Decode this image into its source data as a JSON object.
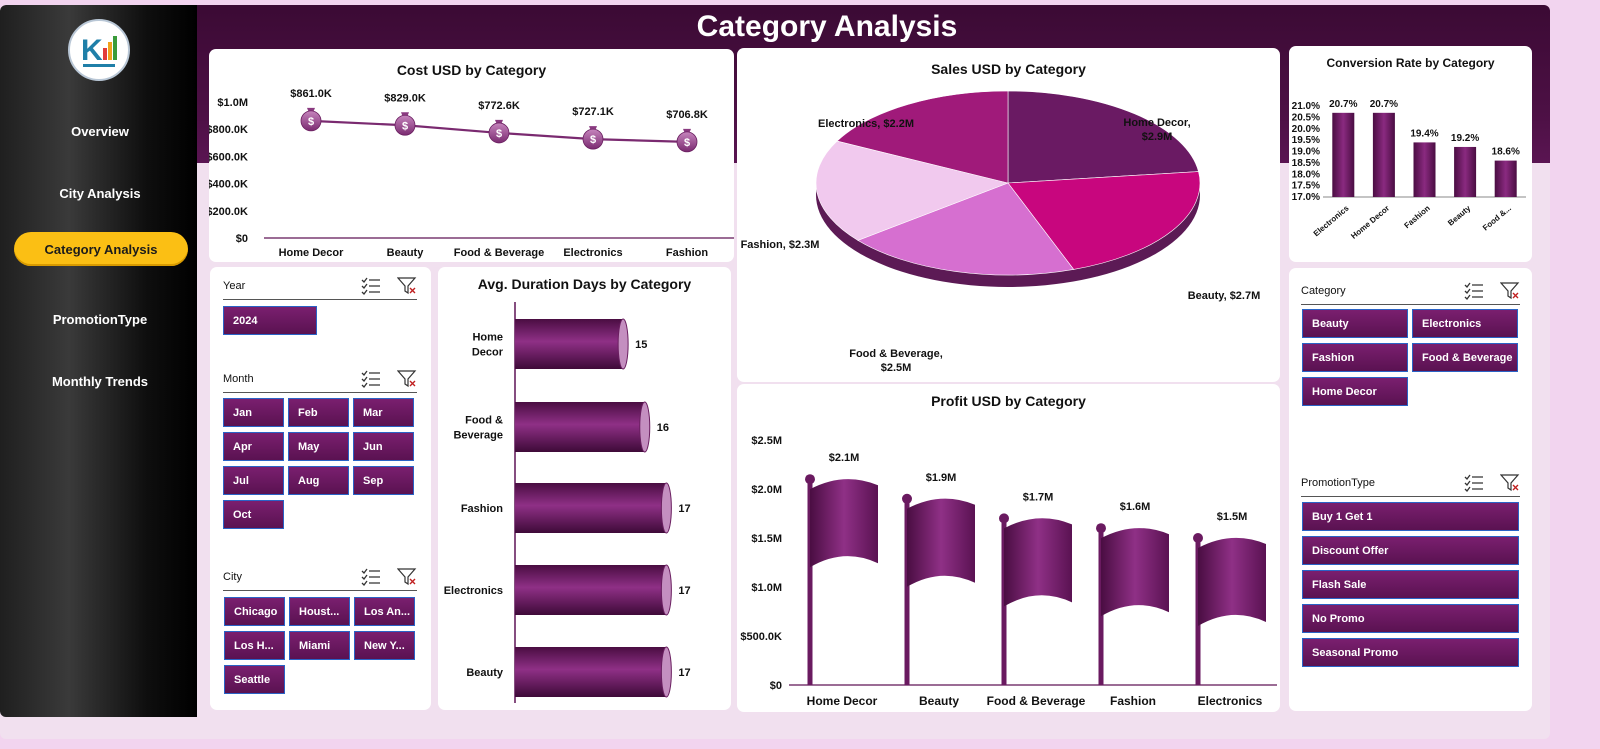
{
  "page_title": "Category Analysis",
  "nav": [
    {
      "label": "Overview",
      "active": false
    },
    {
      "label": "City Analysis",
      "active": false
    },
    {
      "label": "Category Analysis",
      "active": true
    },
    {
      "label": "PromotionType",
      "active": false
    },
    {
      "label": "Monthly Trends",
      "active": false
    }
  ],
  "slicers": {
    "year": {
      "label": "Year",
      "items": [
        "2024"
      ]
    },
    "month": {
      "label": "Month",
      "items": [
        "Jan",
        "Feb",
        "Mar",
        "Apr",
        "May",
        "Jun",
        "Jul",
        "Aug",
        "Sep",
        "Oct"
      ]
    },
    "city": {
      "label": "City",
      "items": [
        "Chicago",
        "Houst...",
        "Los An...",
        "Los H...",
        "Miami",
        "New Y...",
        "Seattle"
      ]
    },
    "category": {
      "label": "Category",
      "items": [
        "Beauty",
        "Electronics",
        "Fashion",
        "Food & Beverage",
        "Home Decor"
      ]
    },
    "promotion": {
      "label": "PromotionType",
      "items": [
        "Buy 1 Get 1",
        "Discount Offer",
        "Flash Sale",
        "No Promo",
        "Seasonal Promo"
      ]
    }
  },
  "colors": {
    "accent": "#5f1456",
    "header": "#4d1045",
    "active_nav": "#fbbf14",
    "chip": "#6a1a60",
    "chip_border": "#2a63c6"
  },
  "chart_data": [
    {
      "id": "cost",
      "type": "line",
      "title": "Cost USD by Category",
      "categories": [
        "Home Decor",
        "Beauty",
        "Food & Beverage",
        "Electronics",
        "Fashion"
      ],
      "values": [
        861000,
        829000,
        772600,
        727100,
        706800
      ],
      "data_labels": [
        "$861.0K",
        "$829.0K",
        "$772.6K",
        "$727.1K",
        "$706.8K"
      ],
      "ylim": [
        0,
        1000000
      ],
      "yticks": [
        0,
        200000,
        400000,
        600000,
        800000,
        1000000
      ],
      "ytick_labels": [
        "$0",
        "$200.0K",
        "$400.0K",
        "$600.0K",
        "$800.0K",
        "$1.0M"
      ],
      "marker": "money-bag-icon"
    },
    {
      "id": "sales",
      "type": "pie",
      "title": "Sales USD by Category",
      "categories": [
        "Home Decor",
        "Beauty",
        "Food & Beverage",
        "Fashion",
        "Electronics"
      ],
      "values": [
        2.9,
        2.7,
        2.5,
        2.3,
        2.2
      ],
      "data_labels": [
        "Home Decor, $2.9M",
        "Beauty, $2.7M",
        "Food & Beverage, $2.5M",
        "Fashion, $2.3M",
        "Electronics, $2.2M"
      ],
      "unit": "M",
      "colors": [
        "#6a1a63",
        "#c8067e",
        "#d66fd0",
        "#f1c9ee",
        "#a01a7a"
      ]
    },
    {
      "id": "conversion",
      "type": "bar",
      "title": "Conversion Rate by Category",
      "categories": [
        "Electronics",
        "Home Decor",
        "Fashion",
        "Beauty",
        "Food &..."
      ],
      "values": [
        20.7,
        20.7,
        19.4,
        19.2,
        18.6
      ],
      "data_labels": [
        "20.7%",
        "20.7%",
        "19.4%",
        "19.2%",
        "18.6%"
      ],
      "ylim": [
        17.0,
        21.0
      ],
      "yticks": [
        17.0,
        17.5,
        18.0,
        18.5,
        19.0,
        19.5,
        20.0,
        20.5,
        21.0
      ],
      "ytick_labels": [
        "17.0%",
        "17.5%",
        "18.0%",
        "18.5%",
        "19.0%",
        "19.5%",
        "20.0%",
        "20.5%",
        "21.0%"
      ]
    },
    {
      "id": "duration",
      "type": "bar",
      "orientation": "horizontal",
      "title": "Avg. Duration Days by Category",
      "categories": [
        "Home Decor",
        "Food & Beverage",
        "Fashion",
        "Electronics",
        "Beauty"
      ],
      "category_lines": [
        [
          "Home",
          "Decor"
        ],
        [
          "Food &",
          "Beverage"
        ],
        [
          "Fashion"
        ],
        [
          "Electronics"
        ],
        [
          "Beauty"
        ]
      ],
      "values": [
        15,
        16,
        17,
        17,
        17
      ],
      "data_labels": [
        "15",
        "16",
        "17",
        "17",
        "17"
      ],
      "xlim": [
        10,
        18
      ]
    },
    {
      "id": "profit",
      "type": "bar",
      "title": "Profit USD by Category",
      "categories": [
        "Home Decor",
        "Beauty",
        "Food & Beverage",
        "Fashion",
        "Electronics"
      ],
      "values": [
        2100000,
        1900000,
        1700000,
        1600000,
        1500000
      ],
      "data_labels": [
        "$2.1M",
        "$1.9M",
        "$1.7M",
        "$1.6M",
        "$1.5M"
      ],
      "ylim": [
        0,
        2500000
      ],
      "yticks": [
        0,
        500000,
        1000000,
        1500000,
        2000000,
        2500000
      ],
      "ytick_labels": [
        "$0",
        "$500.0K",
        "$1.0M",
        "$1.5M",
        "$2.0M",
        "$2.5M"
      ],
      "marker": "flag-icon"
    }
  ]
}
